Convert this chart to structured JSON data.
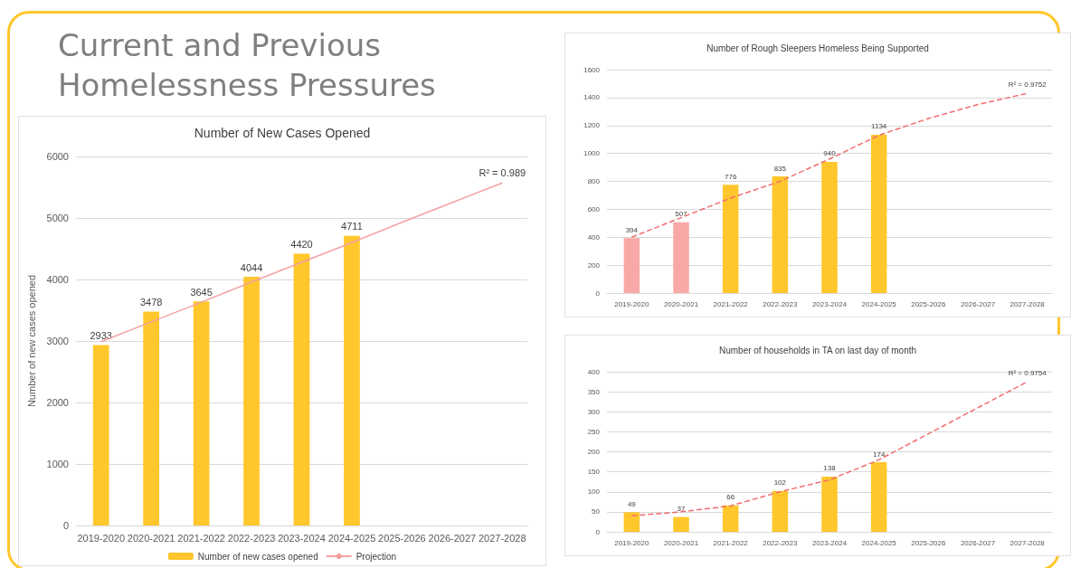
{
  "chart_data": [
    {
      "type": "bar",
      "title": "Number of New Cases Opened",
      "ylabel": "Number of new cases opened",
      "categories": [
        "2019-2020",
        "2020-2021",
        "2021-2022",
        "2022-2023",
        "2023-2024",
        "2024-2025",
        "2025-2026",
        "2026-2027",
        "2027-2028"
      ],
      "series": [
        {
          "name": "Number of new cases opened",
          "color": "#ffc72c",
          "values": [
            2933,
            3478,
            3645,
            4044,
            4420,
            4711,
            null,
            null,
            null
          ],
          "value_labels": [
            "2933",
            "3478",
            "3645",
            "4044",
            "4420",
            "4711",
            null,
            null,
            null
          ]
        },
        {
          "name": "Projection",
          "type": "line",
          "color": "#f4a0a0",
          "values": [
            2990,
            3310,
            3630,
            3960,
            4280,
            4600,
            4930,
            5250,
            5570
          ]
        }
      ],
      "ylim": [
        0,
        6000
      ],
      "yticks": [
        0,
        1000,
        2000,
        3000,
        4000,
        5000,
        6000
      ],
      "grid": "y",
      "legend": "bottom",
      "marker": "none",
      "annotations": [
        "Current and Previous Homelessness Pressures",
        {
          "text": "R² = 0.989",
          "x": "2027-2028",
          "y": 5570
        }
      ]
    },
    {
      "type": "bar",
      "title": "Number of Rough Sleepers Homeless Being Supported",
      "categories": [
        "2019-2020",
        "2020-2021",
        "2021-2022",
        "2022-2023",
        "2023-2024",
        "2024-2025",
        "2025-2026",
        "2026-2027",
        "2027-2028"
      ],
      "series": [
        {
          "color": "#ffc72c",
          "colors": [
            "#f9a8a8",
            "#f9a8a8",
            "#ffc72c",
            "#ffc72c",
            "#ffc72c",
            "#ffc72c",
            "#ffc72c",
            "#ffc72c",
            "#ffc72c"
          ],
          "values": [
            394,
            507,
            776,
            835,
            940,
            1134,
            null,
            null,
            null
          ],
          "value_labels": [
            "394",
            "507",
            "776",
            "835",
            "940",
            "1134",
            null,
            null,
            null
          ]
        },
        {
          "type": "line",
          "color": "#f26d6d",
          "line_style": "dashed",
          "values": [
            400,
            540,
            680,
            800,
            960,
            1130,
            1250,
            1350,
            1430
          ]
        }
      ],
      "ylim": [
        0,
        1600
      ],
      "yticks": [
        0,
        200,
        400,
        600,
        800,
        1000,
        1200,
        1400,
        1600
      ],
      "grid": "y",
      "marker": "none",
      "annotations": [
        {
          "text": "R² = 0.9752",
          "x": "2027-2028",
          "y": 1430
        }
      ]
    },
    {
      "type": "bar",
      "title": "Number of households in TA on last day of month",
      "categories": [
        "2019-2020",
        "2020-2021",
        "2021-2022",
        "2022-2023",
        "2023-2024",
        "2024-2025",
        "2025-2026",
        "2026-2027",
        "2027-2028"
      ],
      "series": [
        {
          "color": "#ffc72c",
          "values": [
            49,
            37,
            66,
            102,
            138,
            174,
            null,
            null,
            null
          ],
          "value_labels": [
            "49",
            "37",
            "66",
            "102",
            "138",
            "174",
            null,
            null,
            null
          ]
        },
        {
          "type": "line",
          "color": "#f26d6d",
          "line_style": "dashed",
          "values": [
            40,
            50,
            65,
            100,
            130,
            180,
            245,
            310,
            375
          ]
        }
      ],
      "ylim": [
        0,
        400
      ],
      "yticks": [
        0,
        50,
        100,
        150,
        200,
        250,
        300,
        350,
        400
      ],
      "grid": "y",
      "marker": "none",
      "annotations": [
        {
          "text": "R² = 0.9754",
          "x": "2027-2028",
          "y": 375
        }
      ]
    }
  ]
}
